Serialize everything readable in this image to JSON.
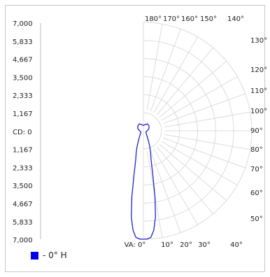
{
  "chart_data": {
    "type": "polar",
    "title": "",
    "unit_label": "CD",
    "cd_max": 7000,
    "cd_tick_labels_top": [
      "7,000",
      "5,833",
      "4,667",
      "3,500",
      "2,333",
      "1,167"
    ],
    "center_label": "CD: 0",
    "cd_tick_labels_bottom": [
      "1,167",
      "2,333",
      "3,500",
      "4,667",
      "5,833",
      "7,000"
    ],
    "right_angle_labels": [
      "130°",
      "120°",
      "110°",
      "100°",
      "90°",
      "80°",
      "70°",
      "60°",
      "50°"
    ],
    "top_angle_labels": [
      "180°",
      "170°",
      "160°",
      "150°",
      "140°"
    ],
    "bottom_angle_labels": [
      "VA: 0°",
      "10°",
      "20°",
      "30°",
      "40°"
    ],
    "grid": true,
    "series": [
      {
        "name": "- 0° H",
        "color": "#2222cc",
        "points": [
          {
            "angle": 0,
            "cd": 7000
          },
          {
            "angle": 2,
            "cd": 6990
          },
          {
            "angle": 4,
            "cd": 6900
          },
          {
            "angle": 6,
            "cd": 6450
          },
          {
            "angle": 8,
            "cd": 5600
          },
          {
            "angle": 10,
            "cd": 4300
          },
          {
            "angle": 12,
            "cd": 2900
          },
          {
            "angle": 15,
            "cd": 1900
          },
          {
            "angle": 18,
            "cd": 1500
          },
          {
            "angle": 22,
            "cd": 1100
          },
          {
            "angle": 28,
            "cd": 650
          },
          {
            "angle": 35,
            "cd": 420
          },
          {
            "angle": 45,
            "cd": 260
          },
          {
            "angle": 60,
            "cd": 180
          },
          {
            "angle": 75,
            "cd": 190
          },
          {
            "angle": 90,
            "cd": 240
          },
          {
            "angle": 110,
            "cd": 380
          },
          {
            "angle": 130,
            "cd": 480
          },
          {
            "angle": 150,
            "cd": 520
          },
          {
            "angle": 170,
            "cd": 390
          },
          {
            "angle": 180,
            "cd": 340
          }
        ]
      }
    ],
    "legend": [
      {
        "label": "- 0° H",
        "color": "#0000ee"
      }
    ],
    "legend_position": "bottom-left"
  }
}
